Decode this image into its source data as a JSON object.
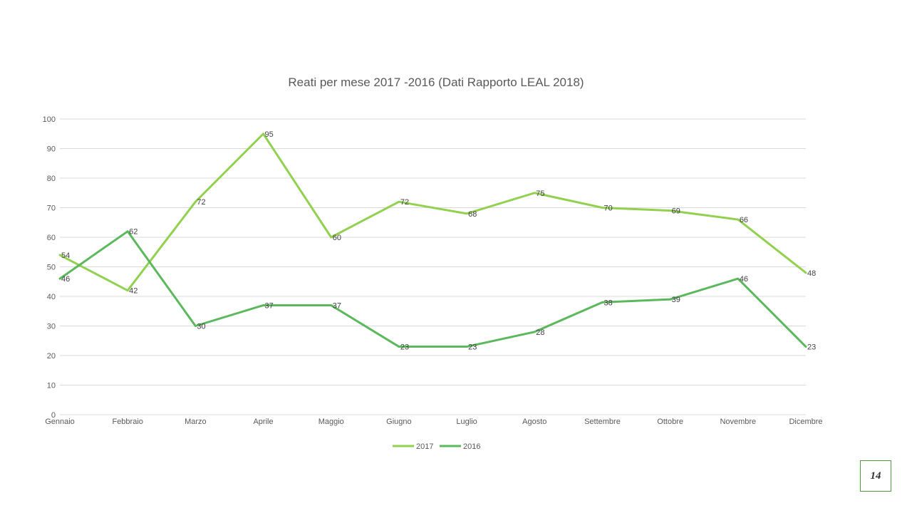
{
  "page": {
    "number": "14"
  },
  "chart_data": {
    "type": "line",
    "title": "Reati per mese 2017 -2016 (Dati Rapporto LEAL 2018)",
    "xlabel": "",
    "ylabel": "",
    "categories": [
      "Gennaio",
      "Febbraio",
      "Marzo",
      "Aprile",
      "Maggio",
      "Giugno",
      "Luglio",
      "Agosto",
      "Settembre",
      "Ottobre",
      "Novembre",
      "Dicembre"
    ],
    "series": [
      {
        "name": "2017",
        "color": "#92d050",
        "values": [
          54,
          42,
          72,
          95,
          60,
          72,
          68,
          75,
          70,
          69,
          66,
          48
        ]
      },
      {
        "name": "2016",
        "color": "#5cb85c",
        "values": [
          46,
          62,
          30,
          37,
          37,
          23,
          23,
          28,
          38,
          39,
          46,
          23
        ]
      }
    ],
    "ylim": [
      0,
      100
    ],
    "yticks": [
      0,
      10,
      20,
      30,
      40,
      50,
      60,
      70,
      80,
      90,
      100
    ],
    "grid": true,
    "legend": "bottom"
  }
}
